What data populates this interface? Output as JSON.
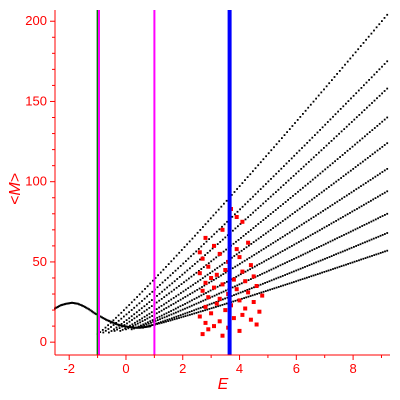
{
  "chart_data": {
    "type": "scatter",
    "title": "",
    "xlabel": "E",
    "ylabel": "<M>",
    "xlim": [
      -2.5,
      9.3
    ],
    "ylim": [
      -8,
      207
    ],
    "x_ticks": [
      -2,
      0,
      2,
      4,
      6,
      8
    ],
    "x_tick_labels": [
      "-2",
      "0",
      "2",
      "4",
      "6",
      "8"
    ],
    "y_ticks": [
      0,
      50,
      100,
      150,
      200
    ],
    "y_tick_labels": [
      "0",
      "50",
      "100",
      "150",
      "200"
    ],
    "grid": false,
    "legend": "none",
    "colors": {
      "axes": "#ff0000",
      "band_points": "#000000",
      "highlight_points": "#ff0000"
    },
    "vertical_lines": [
      {
        "x": -1.0,
        "color": "#008000"
      },
      {
        "x": -0.95,
        "color": "#ff00ff"
      },
      {
        "x": 1.0,
        "color": "#ff00ff"
      },
      {
        "x": 3.65,
        "color": "#0000ff"
      }
    ],
    "band_curves": [
      {
        "x_start": -1.0,
        "y_start": 5,
        "x_end": 9.2,
        "y_end": 204
      },
      {
        "x_start": -0.8,
        "y_start": 6,
        "x_end": 9.2,
        "y_end": 175
      },
      {
        "x_start": -0.6,
        "y_start": 6,
        "x_end": 9.2,
        "y_end": 158
      },
      {
        "x_start": -0.4,
        "y_start": 7,
        "x_end": 9.2,
        "y_end": 140
      },
      {
        "x_start": -0.2,
        "y_start": 7,
        "x_end": 9.2,
        "y_end": 124
      },
      {
        "x_start": 0.0,
        "y_start": 8,
        "x_end": 9.2,
        "y_end": 108
      },
      {
        "x_start": 0.2,
        "y_start": 8,
        "x_end": 9.2,
        "y_end": 94
      },
      {
        "x_start": 0.4,
        "y_start": 9,
        "x_end": 9.2,
        "y_end": 80
      },
      {
        "x_start": 0.6,
        "y_start": 9,
        "x_end": 9.2,
        "y_end": 68
      },
      {
        "x_start": 0.8,
        "y_start": 10,
        "x_end": 9.2,
        "y_end": 57
      }
    ],
    "low_energy_arc": [
      [
        -2.5,
        21
      ],
      [
        -2.3,
        23
      ],
      [
        -2.1,
        24
      ],
      [
        -1.9,
        24.5
      ],
      [
        -1.7,
        24
      ],
      [
        -1.5,
        22.5
      ],
      [
        -1.3,
        20.5
      ],
      [
        -1.1,
        18
      ],
      [
        -0.9,
        16
      ],
      [
        -0.7,
        14
      ],
      [
        -0.5,
        12.5
      ],
      [
        -0.3,
        11
      ],
      [
        -0.1,
        10
      ],
      [
        0.1,
        9.5
      ],
      [
        0.3,
        9
      ],
      [
        0.5,
        9
      ],
      [
        0.7,
        9.5
      ],
      [
        0.9,
        10
      ]
    ],
    "highlight_points": [
      [
        3.7,
        83
      ],
      [
        3.9,
        78
      ],
      [
        4.1,
        75
      ],
      [
        3.4,
        70
      ],
      [
        2.8,
        65
      ],
      [
        4.3,
        62
      ],
      [
        3.1,
        60
      ],
      [
        3.9,
        58
      ],
      [
        2.6,
        56
      ],
      [
        3.3,
        55
      ],
      [
        4.0,
        53
      ],
      [
        2.7,
        52
      ],
      [
        3.6,
        50
      ],
      [
        4.4,
        48
      ],
      [
        2.9,
        47
      ],
      [
        3.5,
        45
      ],
      [
        4.1,
        44
      ],
      [
        2.6,
        43
      ],
      [
        3.2,
        42
      ],
      [
        4.5,
        41
      ],
      [
        3.0,
        40
      ],
      [
        3.8,
        39
      ],
      [
        4.2,
        38
      ],
      [
        2.8,
        37
      ],
      [
        3.4,
        36
      ],
      [
        4.6,
        35
      ],
      [
        3.1,
        34
      ],
      [
        3.9,
        33
      ],
      [
        2.7,
        32
      ],
      [
        4.3,
        31
      ],
      [
        3.6,
        30
      ],
      [
        4.8,
        29
      ],
      [
        2.9,
        28
      ],
      [
        3.3,
        27
      ],
      [
        4.0,
        26
      ],
      [
        4.5,
        25
      ],
      [
        3.2,
        24
      ],
      [
        3.7,
        23
      ],
      [
        2.8,
        22
      ],
      [
        4.2,
        21
      ],
      [
        3.5,
        20
      ],
      [
        4.7,
        19
      ],
      [
        3.0,
        18
      ],
      [
        4.1,
        17
      ],
      [
        2.6,
        16
      ],
      [
        3.8,
        15
      ],
      [
        4.4,
        14
      ],
      [
        3.3,
        13
      ],
      [
        2.8,
        12
      ],
      [
        4.6,
        11
      ],
      [
        3.1,
        10
      ],
      [
        3.6,
        9
      ],
      [
        2.9,
        8
      ],
      [
        4.0,
        7
      ],
      [
        2.7,
        5
      ],
      [
        3.4,
        4
      ]
    ]
  }
}
